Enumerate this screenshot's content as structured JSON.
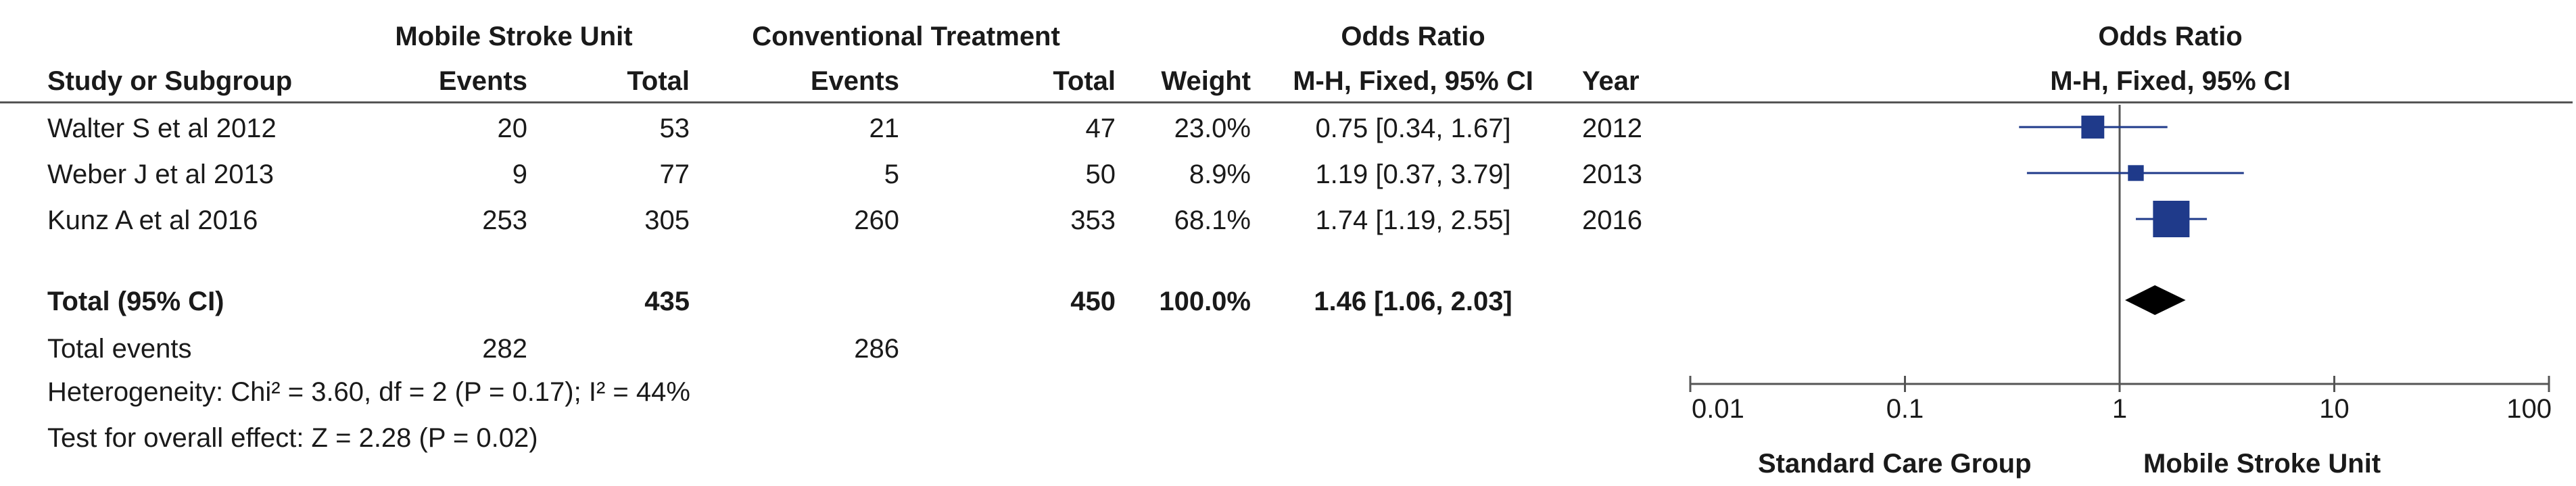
{
  "headers": {
    "group1": "Mobile Stroke Unit",
    "group2": "Conventional Treatment",
    "or_table": "Odds Ratio",
    "or_table_sub": "M-H, Fixed, 95% CI",
    "or_plot": "Odds Ratio",
    "or_plot_sub": "M-H, Fixed, 95% CI",
    "study": "Study or Subgroup",
    "events1": "Events",
    "total1": "Total",
    "events2": "Events",
    "total2": "Total",
    "weight": "Weight",
    "year": "Year"
  },
  "studies": [
    {
      "name": "Walter S et al 2012",
      "events1": "20",
      "total1": "53",
      "events2": "21",
      "total2": "47",
      "weight": "23.0%",
      "ci_text": "0.75 [0.34, 1.67]",
      "year": "2012"
    },
    {
      "name": "Weber J et al 2013",
      "events1": "9",
      "total1": "77",
      "events2": "5",
      "total2": "50",
      "weight": "8.9%",
      "ci_text": "1.19 [0.37, 3.79]",
      "year": "2013"
    },
    {
      "name": "Kunz A et al 2016",
      "events1": "253",
      "total1": "305",
      "events2": "260",
      "total2": "353",
      "weight": "68.1%",
      "ci_text": "1.74 [1.19, 2.55]",
      "year": "2016"
    }
  ],
  "total": {
    "label": "Total (95% CI)",
    "total1": "435",
    "total2": "450",
    "weight": "100.0%",
    "ci_text": "1.46 [1.06, 2.03]"
  },
  "total_events": {
    "label": "Total events",
    "events1": "282",
    "events2": "286"
  },
  "heterogeneity": "Heterogeneity: Chi² = 3.60, df = 2 (P = 0.17); I² = 44%",
  "overall_effect": "Test for overall effect: Z = 2.28 (P = 0.02)",
  "axis": {
    "ticks": [
      "0.01",
      "0.1",
      "1",
      "10",
      "100"
    ],
    "left_label": "Standard Care Group",
    "right_label": "Mobile Stroke Unit"
  },
  "colors": {
    "marker": "#1f3a8a",
    "diamond": "#000000",
    "line": "#555555"
  },
  "chart_data": {
    "type": "forest",
    "scale": "log",
    "xlim": [
      0.01,
      100
    ],
    "studies": [
      {
        "name": "Walter S et al 2012",
        "or": 0.75,
        "ci": [
          0.34,
          1.67
        ],
        "weight": 23.0
      },
      {
        "name": "Weber J et al 2013",
        "or": 1.19,
        "ci": [
          0.37,
          3.79
        ],
        "weight": 8.9
      },
      {
        "name": "Kunz A et al 2016",
        "or": 1.74,
        "ci": [
          1.19,
          2.55
        ],
        "weight": 68.1
      }
    ],
    "pooled": {
      "or": 1.46,
      "ci": [
        1.06,
        2.03
      ]
    }
  }
}
